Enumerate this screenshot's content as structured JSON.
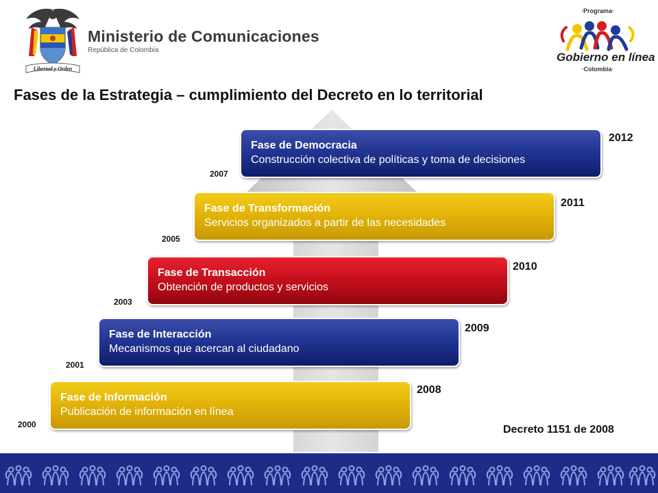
{
  "header": {
    "ministry_name": "Ministerio de Comunicaciones",
    "ministry_subtitle": "República de Colombia",
    "program_label": "·Programa·",
    "program_name": "Gobierno en línea",
    "program_country": "·Colombia·"
  },
  "title": "Fases de la Estrategia – cumplimiento del Decreto en lo territorial",
  "phases": [
    {
      "name": "Fase de Democracia",
      "description": "Construcción colectiva de políticas y toma de decisiones",
      "start_year": "2007",
      "end_year": "2012",
      "color": "#233593"
    },
    {
      "name": "Fase de Transformación",
      "description": "Servicios organizados a partir de las necesidades",
      "start_year": "2005",
      "end_year": "2011",
      "color": "#e3b409"
    },
    {
      "name": "Fase de Transacción",
      "description": "Obtención de productos y servicios",
      "start_year": "2003",
      "end_year": "2010",
      "color": "#c8101c"
    },
    {
      "name": "Fase de Interacción",
      "description": "Mecanismos que acercan al ciudadano",
      "start_year": "2001",
      "end_year": "2009",
      "color": "#233593"
    },
    {
      "name": "Fase de Información",
      "description": "Publicación de información en línea",
      "start_year": "2000",
      "end_year": "2008",
      "color": "#e3b409"
    }
  ],
  "decree": "Decreto 1151 de 2008",
  "colors": {
    "footer": "#1d2c86",
    "arrow": "#d4d4d4"
  }
}
